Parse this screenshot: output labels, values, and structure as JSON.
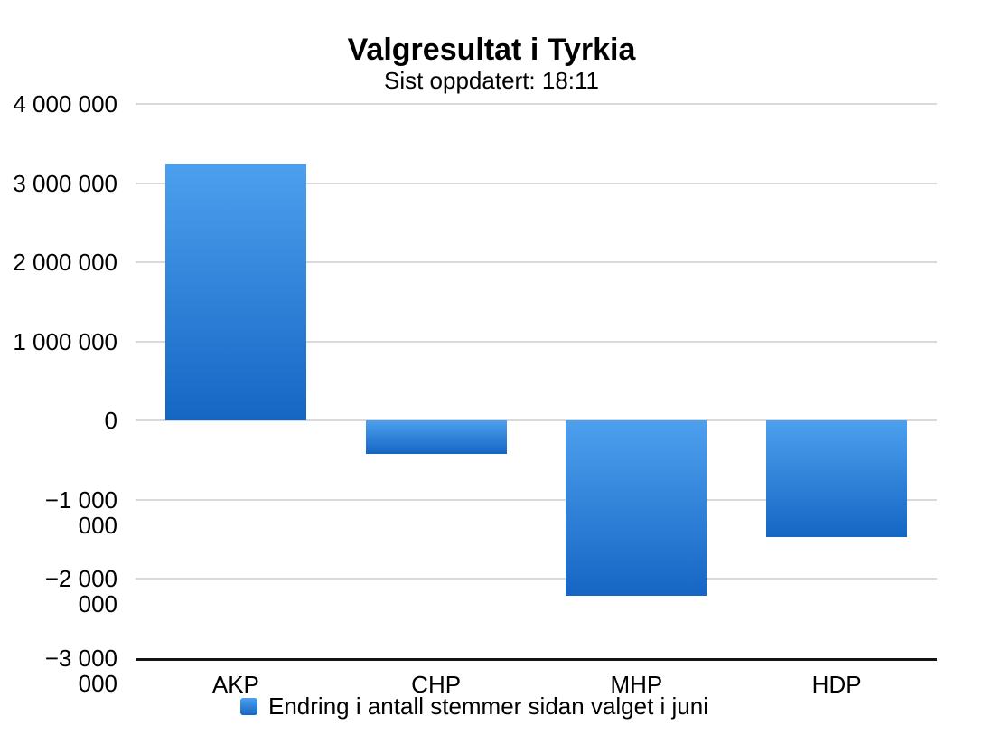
{
  "header": {
    "title": "Valgresultat i Tyrkia",
    "subtitle": "Sist oppdatert: 18:11"
  },
  "colors": {
    "bar_gradient_top": "#4DA0EE",
    "bar_gradient_bottom": "#1566C4",
    "gridline": "#D9D9D9",
    "axis_line": "#151515",
    "text": "#000000",
    "background": "#FFFFFF"
  },
  "chart_data": {
    "type": "bar",
    "title": "Valgresultat i Tyrkia",
    "subtitle": "Sist oppdatert: 18:11",
    "categories": [
      "AKP",
      "CHP",
      "MHP",
      "HDP"
    ],
    "series": [
      {
        "name": "Endring i antall stemmer sidan valget i juni",
        "values": [
          3250000,
          -420000,
          -2210000,
          -1470000
        ]
      }
    ],
    "ylim": [
      -3000000,
      4000000
    ],
    "ytick_step": 1000000,
    "yticks": [
      {
        "value": 4000000,
        "label": "4 000 000"
      },
      {
        "value": 3000000,
        "label": "3 000 000"
      },
      {
        "value": 2000000,
        "label": "2 000 000"
      },
      {
        "value": 1000000,
        "label": "1 000 000"
      },
      {
        "value": 0,
        "label": "0"
      },
      {
        "value": -1000000,
        "label": "−1 000 000"
      },
      {
        "value": -2000000,
        "label": "−2 000 000"
      },
      {
        "value": -3000000,
        "label": "−3 000 000"
      }
    ],
    "xlabel": "",
    "ylabel": "",
    "grid": true,
    "legend_position": "bottom"
  }
}
